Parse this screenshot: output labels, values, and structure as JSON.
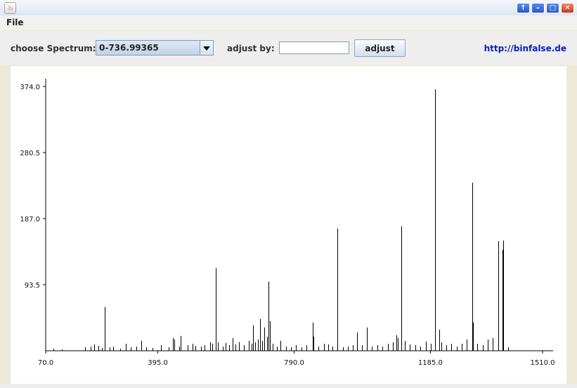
{
  "window": {
    "title": ""
  },
  "menu": {
    "file": "File"
  },
  "toolbar": {
    "choose_label": "choose Spectrum:",
    "spectrum_selected": "0-736.99365",
    "adjust_label": "adjust by:",
    "adjust_value": "",
    "adjust_button": "adjust",
    "link": "http://binfalse.de"
  },
  "colors": {
    "accent": "#0a1fc2",
    "titlebar_button": "#2759c9",
    "close_button": "#c7391a"
  },
  "icons": [
    "java-app-icon",
    "rollup-icon",
    "minimize-icon",
    "maximize-icon",
    "close-icon",
    "chevron-down-icon"
  ],
  "chart_data": {
    "type": "bar",
    "title": "",
    "xlabel": "",
    "ylabel": "",
    "xlim": [
      70,
      1510
    ],
    "ylim": [
      0,
      374
    ],
    "x_ticks": [
      "70.0",
      "395.0",
      "790.0",
      "1185.0",
      "1510.0"
    ],
    "x_tick_values": [
      70,
      395,
      790,
      1185,
      1510
    ],
    "y_ticks": [
      "93.5",
      "187.0",
      "280.5",
      "374.0"
    ],
    "y_tick_values": [
      93.5,
      187,
      280.5,
      374
    ],
    "grid": false,
    "legend": "none",
    "peaks": [
      {
        "x": 93,
        "y": 3
      },
      {
        "x": 116,
        "y": 2
      },
      {
        "x": 185,
        "y": 5
      },
      {
        "x": 200,
        "y": 6
      },
      {
        "x": 211,
        "y": 9
      },
      {
        "x": 222,
        "y": 7
      },
      {
        "x": 233,
        "y": 4
      },
      {
        "x": 241,
        "y": 62
      },
      {
        "x": 256,
        "y": 5
      },
      {
        "x": 266,
        "y": 6
      },
      {
        "x": 286,
        "y": 3
      },
      {
        "x": 302,
        "y": 10
      },
      {
        "x": 316,
        "y": 5
      },
      {
        "x": 333,
        "y": 6
      },
      {
        "x": 348,
        "y": 14
      },
      {
        "x": 361,
        "y": 5
      },
      {
        "x": 380,
        "y": 4
      },
      {
        "x": 404,
        "y": 8
      },
      {
        "x": 426,
        "y": 5
      },
      {
        "x": 438,
        "y": 18
      },
      {
        "x": 442,
        "y": 16
      },
      {
        "x": 456,
        "y": 6
      },
      {
        "x": 461,
        "y": 21
      },
      {
        "x": 481,
        "y": 8
      },
      {
        "x": 496,
        "y": 10
      },
      {
        "x": 504,
        "y": 7
      },
      {
        "x": 520,
        "y": 6
      },
      {
        "x": 531,
        "y": 8
      },
      {
        "x": 546,
        "y": 12
      },
      {
        "x": 553,
        "y": 10
      },
      {
        "x": 563,
        "y": 117
      },
      {
        "x": 569,
        "y": 12
      },
      {
        "x": 583,
        "y": 6
      },
      {
        "x": 592,
        "y": 11
      },
      {
        "x": 602,
        "y": 8
      },
      {
        "x": 611,
        "y": 18
      },
      {
        "x": 620,
        "y": 9
      },
      {
        "x": 631,
        "y": 12
      },
      {
        "x": 645,
        "y": 8
      },
      {
        "x": 658,
        "y": 14
      },
      {
        "x": 666,
        "y": 10
      },
      {
        "x": 671,
        "y": 36
      },
      {
        "x": 677,
        "y": 12
      },
      {
        "x": 686,
        "y": 16
      },
      {
        "x": 691,
        "y": 45
      },
      {
        "x": 697,
        "y": 14
      },
      {
        "x": 704,
        "y": 33
      },
      {
        "x": 712,
        "y": 20
      },
      {
        "x": 716,
        "y": 98
      },
      {
        "x": 719,
        "y": 42
      },
      {
        "x": 728,
        "y": 10
      },
      {
        "x": 741,
        "y": 6
      },
      {
        "x": 751,
        "y": 14
      },
      {
        "x": 766,
        "y": 6
      },
      {
        "x": 781,
        "y": 5
      },
      {
        "x": 796,
        "y": 8
      },
      {
        "x": 811,
        "y": 5
      },
      {
        "x": 826,
        "y": 8
      },
      {
        "x": 843,
        "y": 40
      },
      {
        "x": 846,
        "y": 20
      },
      {
        "x": 861,
        "y": 6
      },
      {
        "x": 876,
        "y": 10
      },
      {
        "x": 888,
        "y": 9
      },
      {
        "x": 901,
        "y": 6
      },
      {
        "x": 916,
        "y": 173
      },
      {
        "x": 931,
        "y": 5
      },
      {
        "x": 946,
        "y": 6
      },
      {
        "x": 961,
        "y": 8
      },
      {
        "x": 973,
        "y": 26
      },
      {
        "x": 986,
        "y": 8
      },
      {
        "x": 1001,
        "y": 33
      },
      {
        "x": 1016,
        "y": 6
      },
      {
        "x": 1031,
        "y": 8
      },
      {
        "x": 1046,
        "y": 6
      },
      {
        "x": 1061,
        "y": 10
      },
      {
        "x": 1076,
        "y": 12
      },
      {
        "x": 1086,
        "y": 22
      },
      {
        "x": 1091,
        "y": 18
      },
      {
        "x": 1101,
        "y": 176
      },
      {
        "x": 1111,
        "y": 14
      },
      {
        "x": 1126,
        "y": 9
      },
      {
        "x": 1141,
        "y": 8
      },
      {
        "x": 1156,
        "y": 6
      },
      {
        "x": 1171,
        "y": 13
      },
      {
        "x": 1186,
        "y": 10
      },
      {
        "x": 1198,
        "y": 370
      },
      {
        "x": 1211,
        "y": 30
      },
      {
        "x": 1216,
        "y": 12
      },
      {
        "x": 1231,
        "y": 8
      },
      {
        "x": 1246,
        "y": 10
      },
      {
        "x": 1261,
        "y": 6
      },
      {
        "x": 1276,
        "y": 10
      },
      {
        "x": 1291,
        "y": 16
      },
      {
        "x": 1306,
        "y": 238
      },
      {
        "x": 1308,
        "y": 40
      },
      {
        "x": 1321,
        "y": 10
      },
      {
        "x": 1336,
        "y": 8
      },
      {
        "x": 1351,
        "y": 16
      },
      {
        "x": 1366,
        "y": 18
      },
      {
        "x": 1381,
        "y": 155
      },
      {
        "x": 1394,
        "y": 143
      },
      {
        "x": 1396,
        "y": 156
      },
      {
        "x": 1411,
        "y": 5
      }
    ]
  }
}
